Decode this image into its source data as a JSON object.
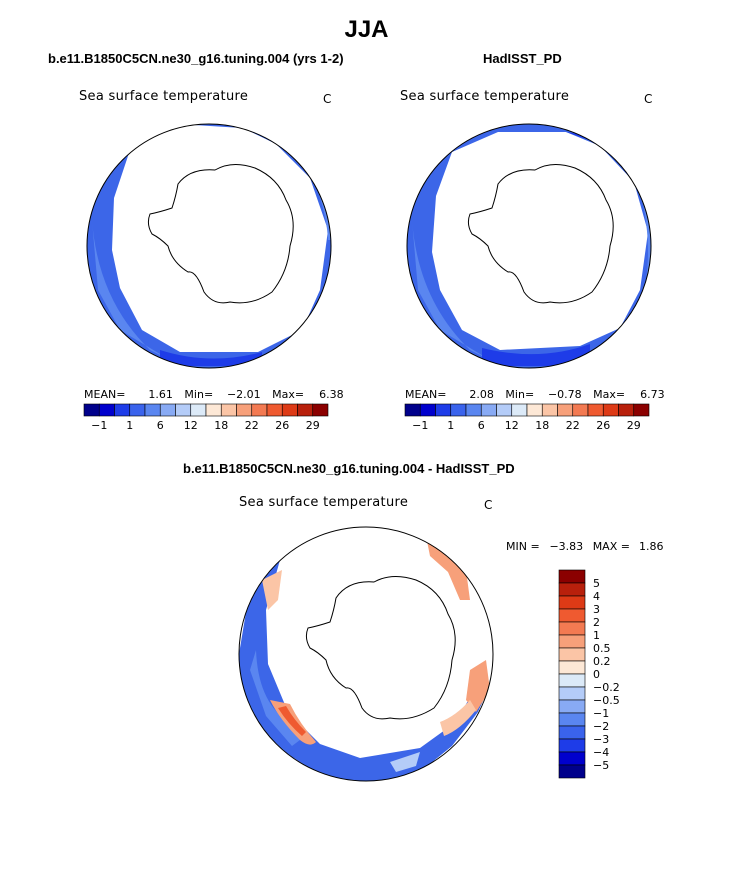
{
  "page_title": "JJA",
  "panels": [
    {
      "title": "b.e11.B1850C5CN.ne30_g16.tuning.004 (yrs 1-2)",
      "subtitle": "Sea surface temperature",
      "units": "C",
      "mean_label": "MEAN=",
      "mean_value": "1.61",
      "min_label": "Min=",
      "min_value": "−2.01",
      "max_label": "Max=",
      "max_value": "6.38"
    },
    {
      "title": "HadISST_PD",
      "subtitle": "Sea surface temperature",
      "units": "C",
      "mean_label": "MEAN=",
      "mean_value": "2.08",
      "min_label": "Min=",
      "min_value": "−0.78",
      "max_label": "Max=",
      "max_value": "6.73"
    }
  ],
  "diff_panel": {
    "title": "b.e11.B1850C5CN.ne30_g16.tuning.004 - HadISST_PD",
    "subtitle": "Sea surface temperature",
    "units": "C",
    "min_label": "MIN =",
    "min_value": "−3.83",
    "max_label": "MAX =",
    "max_value": "1.86"
  },
  "chart_data": [
    {
      "type": "heatmap",
      "projection": "south-polar-stereographic",
      "title": "b.e11.B1850C5CN.ne30_g16.tuning.004 (yrs 1-2)",
      "variable": "Sea surface temperature",
      "units": "C",
      "mean": 1.61,
      "min": -2.01,
      "max": 6.38,
      "colorbar_colors": [
        "#00008b",
        "#0000cd",
        "#1e3ce8",
        "#3a63ec",
        "#5a86f0",
        "#88aaf4",
        "#b4ccf8",
        "#dceaf8",
        "#fde8d6",
        "#fbc5a6",
        "#f7a07a",
        "#f37a52",
        "#ef5a30",
        "#dd3a16",
        "#b8200c",
        "#8b0000"
      ],
      "colorbar_tick_labels": [
        "−1",
        "1",
        "6",
        "12",
        "18",
        "22",
        "26",
        "29"
      ]
    },
    {
      "type": "heatmap",
      "projection": "south-polar-stereographic",
      "title": "HadISST_PD",
      "variable": "Sea surface temperature",
      "units": "C",
      "mean": 2.08,
      "min": -0.78,
      "max": 6.73,
      "colorbar_colors": [
        "#00008b",
        "#0000cd",
        "#1e3ce8",
        "#3a63ec",
        "#5a86f0",
        "#88aaf4",
        "#b4ccf8",
        "#dceaf8",
        "#fde8d6",
        "#fbc5a6",
        "#f7a07a",
        "#f37a52",
        "#ef5a30",
        "#dd3a16",
        "#b8200c",
        "#8b0000"
      ],
      "colorbar_tick_labels": [
        "−1",
        "1",
        "6",
        "12",
        "18",
        "22",
        "26",
        "29"
      ]
    },
    {
      "type": "heatmap",
      "projection": "south-polar-stereographic",
      "title": "b.e11.B1850C5CN.ne30_g16.tuning.004 - HadISST_PD",
      "variable": "Sea surface temperature",
      "units": "C",
      "min": -3.83,
      "max": 1.86,
      "colorbar_levels_top_to_bottom": [
        "5",
        "4",
        "3",
        "2",
        "1",
        "0.5",
        "0.2",
        "0",
        "−0.2",
        "−0.5",
        "−1",
        "−2",
        "−3",
        "−4",
        "−5"
      ],
      "colorbar_colors_top_to_bottom": [
        "#8b0000",
        "#b8200c",
        "#dd3a16",
        "#ef5a30",
        "#f37a52",
        "#f7a07a",
        "#fbc5a6",
        "#fde8d6",
        "#dceaf8",
        "#b4ccf8",
        "#88aaf4",
        "#5a86f0",
        "#3a63ec",
        "#1e3ce8",
        "#0000cd",
        "#00008b"
      ]
    }
  ]
}
